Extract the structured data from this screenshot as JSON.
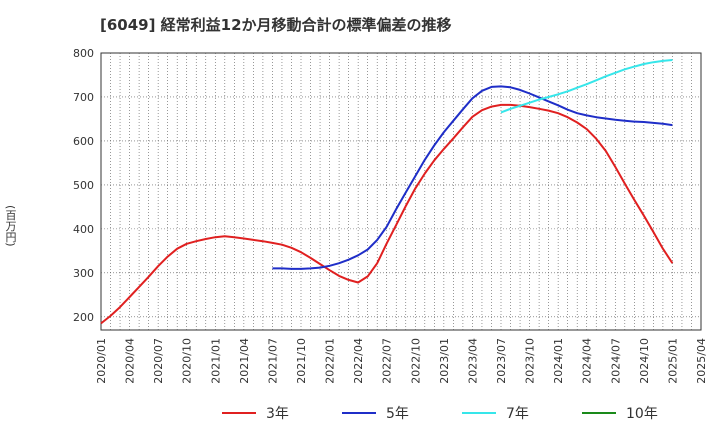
{
  "title": "[6049]  経常利益12か月移動合計の標準偏差の推移",
  "chart_data": {
    "type": "line",
    "title": "[6049]  経常利益12か月移動合計の標準偏差の推移",
    "ylabel": "(百万円)",
    "xlabel": "",
    "ylim": [
      170,
      800
    ],
    "yticks": [
      200,
      300,
      400,
      500,
      600,
      700,
      800
    ],
    "xticks": [
      "2020/01",
      "2020/04",
      "2020/07",
      "2020/10",
      "2021/01",
      "2021/04",
      "2021/07",
      "2021/10",
      "2022/01",
      "2022/04",
      "2022/07",
      "2022/10",
      "2023/01",
      "2023/04",
      "2023/07",
      "2023/10",
      "2024/01",
      "2024/04",
      "2024/07",
      "2024/10",
      "2025/01",
      "2025/04"
    ],
    "grid": true,
    "legend_position": "bottom",
    "series": [
      {
        "name": "3年",
        "color": "#e02020",
        "x": [
          "2020/01",
          "2020/02",
          "2020/03",
          "2020/04",
          "2020/05",
          "2020/06",
          "2020/07",
          "2020/08",
          "2020/09",
          "2020/10",
          "2020/11",
          "2020/12",
          "2021/01",
          "2021/02",
          "2021/03",
          "2021/04",
          "2021/05",
          "2021/06",
          "2021/07",
          "2021/08",
          "2021/09",
          "2021/10",
          "2021/11",
          "2021/12",
          "2022/01",
          "2022/02",
          "2022/03",
          "2022/04",
          "2022/05",
          "2022/06",
          "2022/07",
          "2022/08",
          "2022/09",
          "2022/10",
          "2022/11",
          "2022/12",
          "2023/01",
          "2023/02",
          "2023/03",
          "2023/04",
          "2023/05",
          "2023/06",
          "2023/07",
          "2023/08",
          "2023/09",
          "2023/10",
          "2023/11",
          "2023/12",
          "2024/01",
          "2024/02",
          "2024/03",
          "2024/04",
          "2024/05",
          "2024/06",
          "2024/07",
          "2024/08",
          "2024/09",
          "2024/10",
          "2024/11",
          "2024/12",
          "2025/01"
        ],
        "values": [
          185,
          202,
          222,
          245,
          268,
          291,
          315,
          337,
          355,
          366,
          372,
          377,
          381,
          383,
          381,
          378,
          375,
          372,
          368,
          364,
          357,
          347,
          334,
          320,
          306,
          293,
          284,
          278,
          292,
          322,
          367,
          409,
          452,
          492,
          526,
          556,
          582,
          606,
          631,
          655,
          670,
          678,
          682,
          682,
          680,
          677,
          673,
          669,
          663,
          654,
          642,
          627,
          605,
          577,
          541,
          503,
          466,
          430,
          393,
          355,
          322
        ]
      },
      {
        "name": "5年",
        "color": "#1f2ec8",
        "x": [
          "2021/07",
          "2021/08",
          "2021/09",
          "2021/10",
          "2021/11",
          "2021/12",
          "2022/01",
          "2022/02",
          "2022/03",
          "2022/04",
          "2022/05",
          "2022/06",
          "2022/07",
          "2022/08",
          "2022/09",
          "2022/10",
          "2022/11",
          "2022/12",
          "2023/01",
          "2023/02",
          "2023/03",
          "2023/04",
          "2023/05",
          "2023/06",
          "2023/07",
          "2023/08",
          "2023/09",
          "2023/10",
          "2023/11",
          "2023/12",
          "2024/01",
          "2024/02",
          "2024/03",
          "2024/04",
          "2024/05",
          "2024/06",
          "2024/07",
          "2024/08",
          "2024/09",
          "2024/10",
          "2024/11",
          "2024/12",
          "2025/01"
        ],
        "values": [
          310,
          310,
          309,
          309,
          310,
          312,
          316,
          322,
          330,
          340,
          353,
          375,
          405,
          445,
          483,
          520,
          557,
          590,
          620,
          646,
          672,
          697,
          714,
          723,
          724,
          722,
          716,
          708,
          699,
          690,
          681,
          671,
          663,
          658,
          654,
          651,
          648,
          646,
          644,
          643,
          641,
          639,
          636
        ]
      },
      {
        "name": "7年",
        "color": "#36e6ea",
        "x": [
          "2023/07",
          "2023/08",
          "2023/09",
          "2023/10",
          "2023/11",
          "2023/12",
          "2024/01",
          "2024/02",
          "2024/03",
          "2024/04",
          "2024/05",
          "2024/06",
          "2024/07",
          "2024/08",
          "2024/09",
          "2024/10",
          "2024/11",
          "2024/12",
          "2025/01"
        ],
        "values": [
          665,
          673,
          680,
          687,
          694,
          700,
          706,
          713,
          721,
          729,
          738,
          747,
          755,
          763,
          769,
          775,
          779,
          782,
          784
        ]
      },
      {
        "name": "10年",
        "color": "#1a8a1a",
        "x": [],
        "values": []
      }
    ]
  }
}
